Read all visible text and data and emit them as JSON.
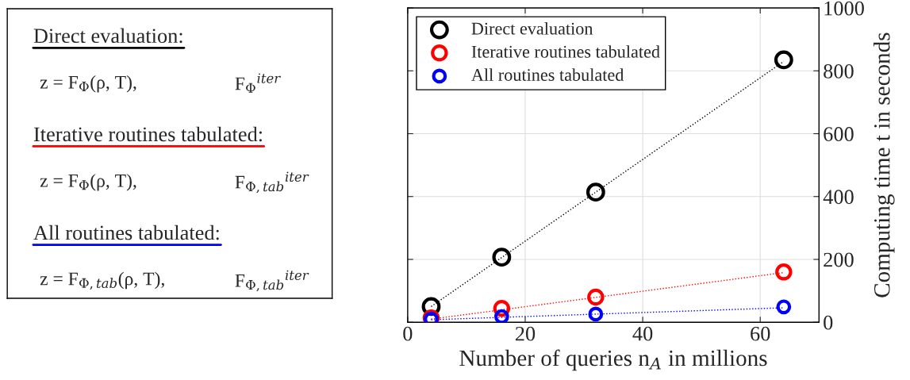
{
  "chart_data": [
    {
      "type": "other",
      "annotations": [
        "Direct evaluation:",
        "z = F$_{Φ}$(ρ, T),",
        "F$_{Φ}$$^{iter}$",
        "Iterative routines tabulated:",
        "z = F$_{Φ}$(ρ, T),",
        "F$_{Φ,tab}$$^{iter}$",
        "All routines tabulated:",
        "z = F$_{Φ,tab}$(ρ, T),",
        "F$_{Φ,tab}$$^{iter}$"
      ],
      "colors": [
        "#000000",
        null,
        null,
        "#ff0000",
        null,
        null,
        "#0000ff",
        null,
        null
      ]
    },
    {
      "type": "scatter",
      "xlabel": "Number of queries n$_{A}$ in millions",
      "ylabel": "Computing time t in seconds",
      "xlim": [
        0,
        70
      ],
      "xticks": [
        0,
        20,
        40,
        60
      ],
      "ylim": [
        0,
        1000
      ],
      "yticks": [
        0,
        200,
        400,
        600,
        800,
        1000
      ],
      "grid": true,
      "legend": "top left",
      "marker": "circle",
      "series": [
        {
          "name": "Direct evaluation",
          "color": "#000000",
          "x": [
            4,
            16,
            32,
            64
          ],
          "values": [
            50,
            207,
            414,
            835
          ]
        },
        {
          "name": "Iterative routines tabulated",
          "color": "#ff0000",
          "x": [
            4,
            16,
            32,
            64
          ],
          "values": [
            14,
            44,
            80,
            160
          ]
        },
        {
          "name": "All routines tabulated",
          "color": "#0000ff",
          "x": [
            4,
            16,
            32,
            64
          ],
          "values": [
            10,
            18,
            26,
            49
          ]
        },
        {
          "type": "line",
          "line_style": "dotted",
          "marker": "none",
          "color": "#000000",
          "x": [
            4,
            64
          ],
          "values": [
            50,
            830
          ]
        },
        {
          "type": "line",
          "line_style": "dotted",
          "marker": "none",
          "color": "#ff0000",
          "x": [
            4,
            64
          ],
          "values": [
            10,
            158
          ]
        },
        {
          "type": "line",
          "line_style": "dotted",
          "marker": "none",
          "color": "#0000ff",
          "x": [
            4,
            64
          ],
          "values": [
            8,
            46
          ]
        }
      ]
    }
  ]
}
